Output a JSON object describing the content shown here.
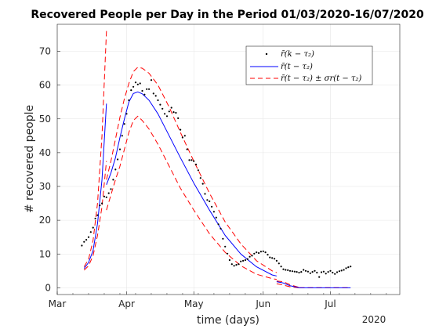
{
  "chart_data": {
    "type": "line",
    "title": "Recovered People per Day in the Period 01/03/2020-16/07/2020",
    "xlabel": "time (days)",
    "ylabel": "# recovered people",
    "year_label": "2020",
    "x_ticks": [
      {
        "label": "Mar",
        "date": "2020-03-01"
      },
      {
        "label": "Apr",
        "date": "2020-04-01"
      },
      {
        "label": "May",
        "date": "2020-05-01"
      },
      {
        "label": "Jun",
        "date": "2020-06-01"
      },
      {
        "label": "Jul",
        "date": "2020-07-01"
      }
    ],
    "xlim": [
      "2020-03-01",
      "2020-08-01"
    ],
    "y_ticks": [
      0,
      10,
      20,
      30,
      40,
      50,
      60,
      70
    ],
    "ylim": [
      -2,
      78
    ],
    "grid": true,
    "legend": {
      "placement": "top-right",
      "entries": [
        {
          "label": "r̄(k − τ₂)",
          "style": "dots"
        },
        {
          "label": "r̄(t − τ₂)",
          "style": "solid-blue"
        },
        {
          "label": "r̄(t − τ₂) ± σr(t − τ₂)",
          "style": "dashed-red"
        }
      ]
    },
    "colors": {
      "fit": "#0000ff",
      "band": "#ff0000",
      "dots": "#000000"
    },
    "dots": [
      [
        "2020-03-12",
        12.5
      ],
      [
        "2020-03-13",
        13.6
      ],
      [
        "2020-03-14",
        14.2
      ],
      [
        "2020-03-15",
        15
      ],
      [
        "2020-03-16",
        16.5
      ],
      [
        "2020-03-17",
        17.8
      ],
      [
        "2020-03-18",
        20.5
      ],
      [
        "2020-03-19",
        21.5
      ],
      [
        "2020-03-20",
        24.4
      ],
      [
        "2020-03-21",
        25
      ],
      [
        "2020-03-22",
        27
      ],
      [
        "2020-03-23",
        26.8
      ],
      [
        "2020-03-24",
        28
      ],
      [
        "2020-03-25",
        29.2
      ],
      [
        "2020-03-26",
        32
      ],
      [
        "2020-03-27",
        35
      ],
      [
        "2020-03-28",
        38
      ],
      [
        "2020-03-29",
        41
      ],
      [
        "2020-03-30",
        45
      ],
      [
        "2020-03-31",
        48.5
      ],
      [
        "2020-04-01",
        51.5
      ],
      [
        "2020-04-02",
        55.5
      ],
      [
        "2020-04-03",
        58.5
      ],
      [
        "2020-04-04",
        59.5
      ],
      [
        "2020-04-05",
        60.8
      ],
      [
        "2020-04-06",
        60.2
      ],
      [
        "2020-04-07",
        60.5
      ],
      [
        "2020-04-08",
        58.3
      ],
      [
        "2020-04-09",
        57.2
      ],
      [
        "2020-04-10",
        58.8
      ],
      [
        "2020-04-11",
        58.8
      ],
      [
        "2020-04-12",
        61.5
      ],
      [
        "2020-04-13",
        57.5
      ],
      [
        "2020-04-14",
        56.8
      ],
      [
        "2020-04-15",
        55.5
      ],
      [
        "2020-04-16",
        54.2
      ],
      [
        "2020-04-17",
        53
      ],
      [
        "2020-04-18",
        51.5
      ],
      [
        "2020-04-19",
        50.8
      ],
      [
        "2020-04-20",
        52.2
      ],
      [
        "2020-04-21",
        53.3
      ],
      [
        "2020-04-22",
        52
      ],
      [
        "2020-04-23",
        51.8
      ],
      [
        "2020-04-24",
        50.2
      ],
      [
        "2020-04-25",
        46.8
      ],
      [
        "2020-04-26",
        44.5
      ],
      [
        "2020-04-27",
        45
      ],
      [
        "2020-04-28",
        41
      ],
      [
        "2020-04-29",
        37.8
      ],
      [
        "2020-04-30",
        37.8
      ],
      [
        "2020-05-01",
        37.5
      ],
      [
        "2020-05-02",
        36.5
      ],
      [
        "2020-05-03",
        34.8
      ],
      [
        "2020-05-04",
        32.5
      ],
      [
        "2020-05-05",
        30.8
      ],
      [
        "2020-05-06",
        27.8
      ],
      [
        "2020-05-07",
        26
      ],
      [
        "2020-05-08",
        25.6
      ],
      [
        "2020-05-09",
        24
      ],
      [
        "2020-05-10",
        22.5
      ],
      [
        "2020-05-11",
        20.8
      ],
      [
        "2020-05-12",
        18.8
      ],
      [
        "2020-05-13",
        17.5
      ],
      [
        "2020-05-14",
        14.5
      ],
      [
        "2020-05-15",
        12.2
      ],
      [
        "2020-05-16",
        10.1
      ],
      [
        "2020-05-17",
        8.2
      ],
      [
        "2020-05-18",
        7
      ],
      [
        "2020-05-19",
        6.5
      ],
      [
        "2020-05-20",
        6.8
      ],
      [
        "2020-05-21",
        7
      ],
      [
        "2020-05-22",
        7.8
      ],
      [
        "2020-05-23",
        8
      ],
      [
        "2020-05-24",
        8.2
      ],
      [
        "2020-05-25",
        8.5
      ],
      [
        "2020-05-26",
        9.2
      ],
      [
        "2020-05-27",
        9.5
      ],
      [
        "2020-05-28",
        10.1
      ],
      [
        "2020-05-29",
        10.5
      ],
      [
        "2020-05-30",
        10.3
      ],
      [
        "2020-05-31",
        10.7
      ],
      [
        "2020-06-01",
        10.8
      ],
      [
        "2020-06-02",
        10.5
      ],
      [
        "2020-06-03",
        9.8
      ],
      [
        "2020-06-04",
        9
      ],
      [
        "2020-06-05",
        8.8
      ],
      [
        "2020-06-06",
        8.6
      ],
      [
        "2020-06-07",
        8
      ],
      [
        "2020-06-08",
        7.2
      ],
      [
        "2020-06-09",
        6.3
      ],
      [
        "2020-06-10",
        5.5
      ],
      [
        "2020-06-11",
        5.3
      ],
      [
        "2020-06-12",
        5.2
      ],
      [
        "2020-06-13",
        5
      ],
      [
        "2020-06-14",
        4.9
      ],
      [
        "2020-06-15",
        4.8
      ],
      [
        "2020-06-16",
        4.7
      ],
      [
        "2020-06-17",
        4.5
      ],
      [
        "2020-06-18",
        4.7
      ],
      [
        "2020-06-19",
        5.3
      ],
      [
        "2020-06-20",
        5
      ],
      [
        "2020-06-21",
        4.8
      ],
      [
        "2020-06-22",
        4.3
      ],
      [
        "2020-06-23",
        4.7
      ],
      [
        "2020-06-24",
        5
      ],
      [
        "2020-06-25",
        4.5
      ],
      [
        "2020-06-26",
        3.2
      ],
      [
        "2020-06-27",
        4.6
      ],
      [
        "2020-06-28",
        4.8
      ],
      [
        "2020-06-29",
        4.2
      ],
      [
        "2020-06-30",
        4.7
      ],
      [
        "2020-07-01",
        5
      ],
      [
        "2020-07-02",
        4.5
      ],
      [
        "2020-07-03",
        4.1
      ],
      [
        "2020-07-04",
        4.6
      ],
      [
        "2020-07-05",
        4.9
      ],
      [
        "2020-07-06",
        5.1
      ],
      [
        "2020-07-07",
        5.3
      ],
      [
        "2020-07-08",
        5.8
      ],
      [
        "2020-07-09",
        6.1
      ],
      [
        "2020-07-10",
        6.3
      ]
    ],
    "fit_segments": [
      [
        [
          "2020-03-13",
          5.7
        ],
        [
          "2020-03-15",
          7.5
        ],
        [
          "2020-03-17",
          11
        ],
        [
          "2020-03-19",
          19
        ],
        [
          "2020-03-21",
          32
        ],
        [
          "2020-03-23",
          54.5
        ]
      ],
      [
        [
          "2020-03-23",
          30.5
        ],
        [
          "2020-03-25",
          34
        ],
        [
          "2020-03-27",
          38.5
        ],
        [
          "2020-03-29",
          44.5
        ],
        [
          "2020-03-31",
          50
        ],
        [
          "2020-04-02",
          55
        ],
        [
          "2020-04-04",
          57.5
        ],
        [
          "2020-04-06",
          58
        ],
        [
          "2020-04-08",
          57.4
        ],
        [
          "2020-04-11",
          55.5
        ],
        [
          "2020-04-15",
          51.5
        ],
        [
          "2020-04-20",
          45
        ],
        [
          "2020-04-25",
          38.5
        ],
        [
          "2020-05-01",
          31
        ],
        [
          "2020-05-08",
          23
        ],
        [
          "2020-05-15",
          15.5
        ],
        [
          "2020-05-22",
          10
        ],
        [
          "2020-05-29",
          6.2
        ],
        [
          "2020-06-05",
          3.8
        ],
        [
          "2020-06-07",
          3.5
        ]
      ],
      [
        [
          "2020-06-07",
          1.8
        ],
        [
          "2020-06-10",
          1.4
        ],
        [
          "2020-06-13",
          0.6
        ],
        [
          "2020-06-17",
          0.05
        ]
      ],
      [
        [
          "2020-06-17",
          0
        ],
        [
          "2020-07-10",
          0
        ]
      ]
    ],
    "band_upper_segments": [
      [
        [
          "2020-03-13",
          6.2
        ],
        [
          "2020-03-15",
          8.5
        ],
        [
          "2020-03-17",
          14
        ],
        [
          "2020-03-19",
          25
        ],
        [
          "2020-03-21",
          45
        ],
        [
          "2020-03-23",
          76
        ]
      ],
      [
        [
          "2020-03-23",
          32
        ],
        [
          "2020-03-25",
          37.5
        ],
        [
          "2020-03-27",
          44
        ],
        [
          "2020-03-29",
          50.5
        ],
        [
          "2020-03-31",
          56
        ],
        [
          "2020-04-02",
          60.5
        ],
        [
          "2020-04-04",
          64
        ],
        [
          "2020-04-06",
          65.3
        ],
        [
          "2020-04-08",
          65
        ],
        [
          "2020-04-11",
          63.5
        ],
        [
          "2020-04-15",
          60
        ],
        [
          "2020-04-20",
          53.5
        ],
        [
          "2020-04-25",
          46
        ],
        [
          "2020-05-01",
          37.5
        ],
        [
          "2020-05-08",
          28
        ],
        [
          "2020-05-15",
          19.5
        ],
        [
          "2020-05-22",
          13
        ],
        [
          "2020-05-29",
          8
        ],
        [
          "2020-06-05",
          5
        ],
        [
          "2020-06-07",
          4.5
        ]
      ],
      [
        [
          "2020-06-07",
          2
        ],
        [
          "2020-06-10",
          1.8
        ],
        [
          "2020-06-13",
          0.9
        ],
        [
          "2020-06-17",
          0.1
        ]
      ],
      [
        [
          "2020-06-17",
          0
        ],
        [
          "2020-07-10",
          0
        ]
      ]
    ],
    "band_lower_segments": [
      [
        [
          "2020-03-13",
          5.2
        ],
        [
          "2020-03-15",
          6.5
        ],
        [
          "2020-03-17",
          9.5
        ],
        [
          "2020-03-19",
          15.5
        ],
        [
          "2020-03-21",
          24
        ],
        [
          "2020-03-23",
          37.5
        ]
      ],
      [
        [
          "2020-03-23",
          23
        ],
        [
          "2020-03-25",
          27.5
        ],
        [
          "2020-03-27",
          32
        ],
        [
          "2020-03-29",
          36
        ],
        [
          "2020-03-31",
          41
        ],
        [
          "2020-04-02",
          46
        ],
        [
          "2020-04-04",
          49.5
        ],
        [
          "2020-04-06",
          50.8
        ],
        [
          "2020-04-08",
          49.5
        ],
        [
          "2020-04-11",
          47
        ],
        [
          "2020-04-15",
          42.5
        ],
        [
          "2020-04-20",
          36
        ],
        [
          "2020-04-25",
          29.5
        ],
        [
          "2020-05-01",
          23
        ],
        [
          "2020-05-08",
          16
        ],
        [
          "2020-05-15",
          10.5
        ],
        [
          "2020-05-22",
          6.5
        ],
        [
          "2020-05-29",
          4
        ],
        [
          "2020-06-05",
          2.7
        ],
        [
          "2020-06-07",
          2.5
        ]
      ],
      [
        [
          "2020-06-07",
          1.2
        ],
        [
          "2020-06-10",
          0.8
        ],
        [
          "2020-06-13",
          0.3
        ],
        [
          "2020-06-17",
          0
        ]
      ],
      [
        [
          "2020-06-17",
          0
        ],
        [
          "2020-07-10",
          0
        ]
      ]
    ]
  }
}
